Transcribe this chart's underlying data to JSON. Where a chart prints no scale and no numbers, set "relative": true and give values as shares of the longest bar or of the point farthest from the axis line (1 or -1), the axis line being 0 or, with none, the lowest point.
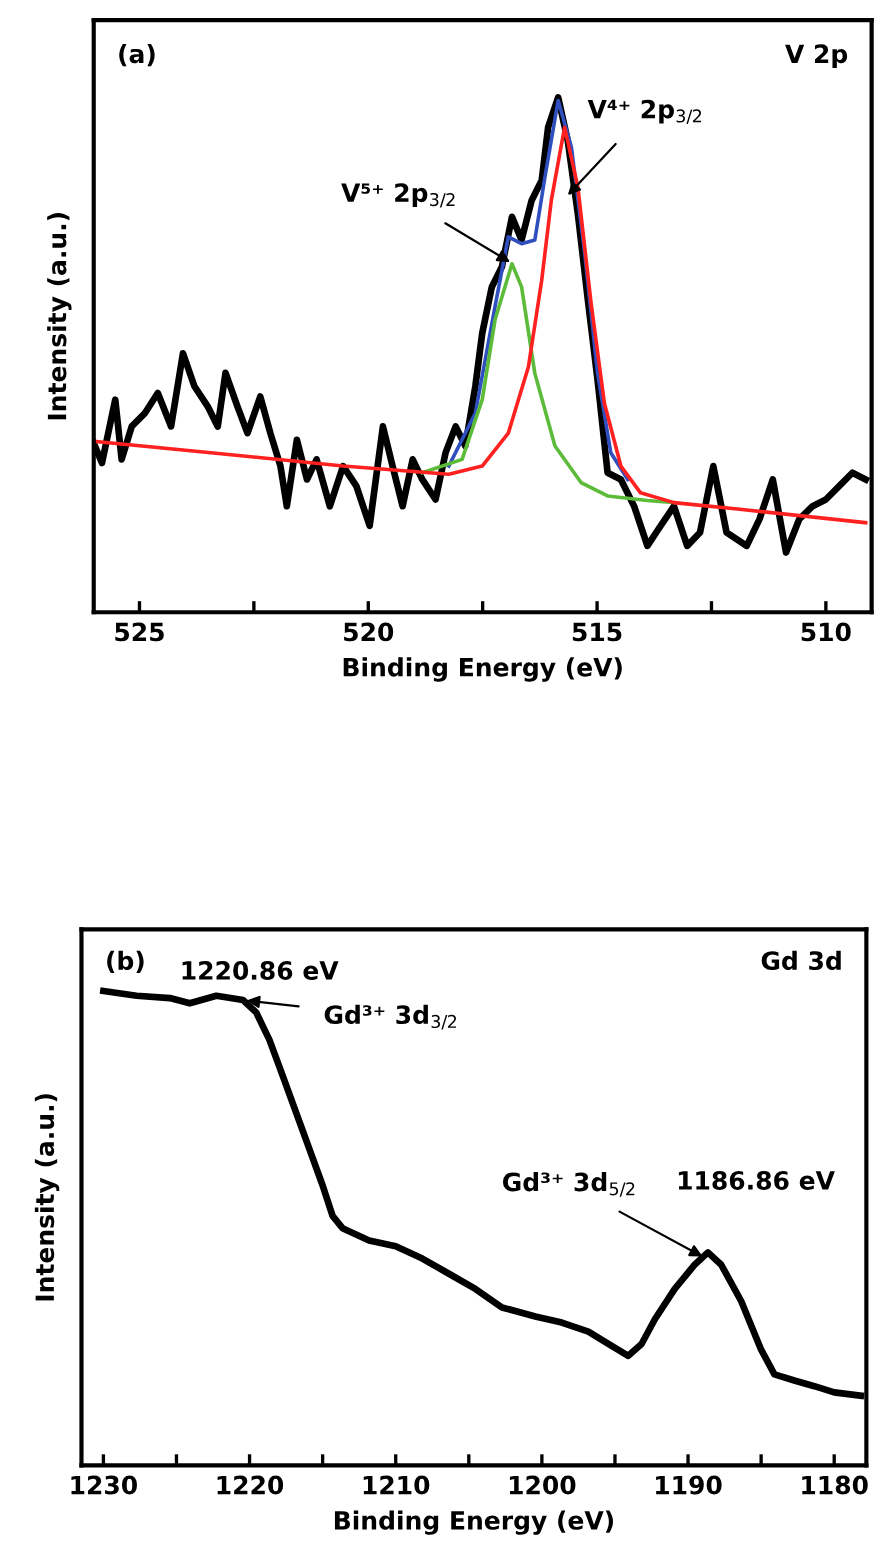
{
  "chart_data": [
    {
      "type": "line",
      "relative": true,
      "xlabel": "Binding Energy (eV)",
      "ylabel": "Intensity (a.u.)",
      "xlim": [
        526,
        509
      ],
      "xticks": [
        525,
        {
          "value": 522.5,
          "label": null
        },
        520,
        {
          "value": 517.5,
          "label": null
        },
        515,
        {
          "value": 512.5,
          "label": null
        },
        510
      ],
      "grid": false,
      "legend": false,
      "marker": "none",
      "line_style": "solid",
      "annotations": [
        "(a)",
        "V 2p",
        {
          "text": "V⁵⁺ 2p$_{3/2}$",
          "x": 516.9,
          "y": 0.68
        },
        {
          "text": "V⁴⁺ 2p$_{3/2}$",
          "x": 515.64,
          "y": 0.81
        }
      ],
      "series": [
        {
          "color": "#000000",
          "x": [
            526.0,
            525.82,
            525.53,
            525.39,
            525.17,
            524.88,
            524.6,
            524.31,
            524.05,
            523.8,
            523.51,
            523.29,
            523.12,
            522.86,
            522.64,
            522.36,
            522.14,
            521.92,
            521.78,
            521.56,
            521.34,
            521.13,
            520.84,
            520.55,
            520.26,
            519.97,
            519.68,
            519.47,
            519.25,
            519.03,
            518.82,
            518.53,
            518.31,
            518.09,
            517.88,
            517.66,
            517.51,
            517.3,
            517.08,
            516.86,
            516.65,
            516.43,
            516.21,
            516.07,
            515.85,
            515.64,
            515.42,
            515.2,
            514.99,
            514.77,
            514.48,
            514.19,
            513.9,
            513.61,
            513.32,
            513.03,
            512.75,
            512.46,
            512.17,
            511.73,
            511.45,
            511.16,
            510.87,
            510.58,
            510.29,
            510.0,
            509.71,
            509.42,
            509.13
          ],
          "values": [
            0.329,
            0.29,
            0.413,
            0.297,
            0.361,
            0.387,
            0.426,
            0.361,
            0.503,
            0.439,
            0.4,
            0.361,
            0.465,
            0.4,
            0.348,
            0.419,
            0.348,
            0.284,
            0.206,
            0.335,
            0.258,
            0.297,
            0.206,
            0.284,
            0.245,
            0.168,
            0.361,
            0.284,
            0.206,
            0.297,
            0.258,
            0.219,
            0.31,
            0.361,
            0.323,
            0.439,
            0.542,
            0.632,
            0.671,
            0.768,
            0.723,
            0.8,
            0.839,
            0.942,
            1.0,
            0.916,
            0.774,
            0.606,
            0.452,
            0.271,
            0.258,
            0.206,
            0.129,
            0.168,
            0.206,
            0.129,
            0.155,
            0.284,
            0.155,
            0.129,
            0.181,
            0.258,
            0.116,
            0.181,
            0.206,
            0.219,
            0.245,
            0.271,
            0.258
          ]
        },
        {
          "color": "#2f4fbf",
          "x": [
            518.24,
            517.66,
            517.23,
            516.94,
            516.65,
            516.36,
            516.14,
            515.85,
            515.56,
            515.27,
            514.99,
            514.7,
            514.33
          ],
          "values": [
            0.284,
            0.387,
            0.594,
            0.729,
            0.716,
            0.723,
            0.845,
            0.994,
            0.903,
            0.697,
            0.465,
            0.31,
            0.258
          ]
        },
        {
          "color": "#5dbb3a",
          "x": [
            518.82,
            517.95,
            517.51,
            517.23,
            516.86,
            516.65,
            516.36,
            515.92,
            515.35,
            514.77,
            513.9,
            513.32
          ],
          "values": [
            0.271,
            0.297,
            0.413,
            0.568,
            0.677,
            0.632,
            0.464,
            0.323,
            0.252,
            0.226,
            0.217,
            0.213
          ]
        },
        {
          "color": "#ff2020",
          "x": [
            526.0,
            523.44,
            520.55,
            518.24,
            517.51,
            516.94,
            516.5,
            516.21,
            516.0,
            515.71,
            515.42,
            515.13,
            514.84,
            514.48,
            514.05,
            513.32,
            511.88,
            509.13
          ],
          "values": [
            0.332,
            0.31,
            0.284,
            0.268,
            0.284,
            0.348,
            0.477,
            0.645,
            0.8,
            0.942,
            0.826,
            0.6,
            0.406,
            0.284,
            0.232,
            0.213,
            0.2,
            0.174
          ]
        }
      ]
    },
    {
      "type": "line",
      "relative": true,
      "xlabel": "Binding Energy (eV)",
      "ylabel": "Intensity (a.u.)",
      "xlim": [
        1231.5,
        1177.8
      ],
      "xticks": [
        1230,
        {
          "value": 1225,
          "label": null
        },
        1220,
        {
          "value": 1215,
          "label": null
        },
        1210,
        {
          "value": 1205,
          "label": null
        },
        1200,
        {
          "value": 1195,
          "label": null
        },
        1190,
        {
          "value": 1185,
          "label": null
        },
        1180
      ],
      "grid": false,
      "legend": false,
      "marker": "none",
      "line_style": "solid",
      "annotations": [
        "(b)",
        "Gd 3d",
        {
          "text": "1220.86 eV",
          "x": 1220.86,
          "y": 0.98
        },
        {
          "text": "Gd³⁺ 3d$_{3/2}$",
          "x": 1220.2,
          "y": 0.98
        },
        {
          "text": "Gd³⁺ 3d$_{5/2}$",
          "x": 1189.0,
          "y": 0.44
        },
        "1186.86 eV"
      ],
      "series": [
        {
          "color": "#000000",
          "x": [
            1230.0,
            1227.73,
            1225.45,
            1224.09,
            1222.27,
            1220.45,
            1219.55,
            1218.64,
            1217.73,
            1216.82,
            1215.91,
            1215.0,
            1214.32,
            1213.64,
            1211.82,
            1210.0,
            1208.18,
            1206.36,
            1204.55,
            1202.73,
            1200.45,
            1198.64,
            1196.82,
            1195.45,
            1194.09,
            1193.18,
            1192.27,
            1190.91,
            1189.55,
            1188.64,
            1187.73,
            1186.36,
            1185.0,
            1184.09,
            1182.73,
            1181.36,
            1180.0,
            1178.18
          ],
          "values": [
            1.0,
            0.99,
            0.985,
            0.974,
            0.99,
            0.981,
            0.955,
            0.897,
            0.821,
            0.744,
            0.667,
            0.59,
            0.526,
            0.5,
            0.474,
            0.462,
            0.436,
            0.404,
            0.372,
            0.333,
            0.314,
            0.301,
            0.282,
            0.256,
            0.231,
            0.256,
            0.308,
            0.372,
            0.423,
            0.449,
            0.423,
            0.346,
            0.244,
            0.192,
            0.179,
            0.167,
            0.154,
            0.147
          ]
        }
      ]
    }
  ]
}
